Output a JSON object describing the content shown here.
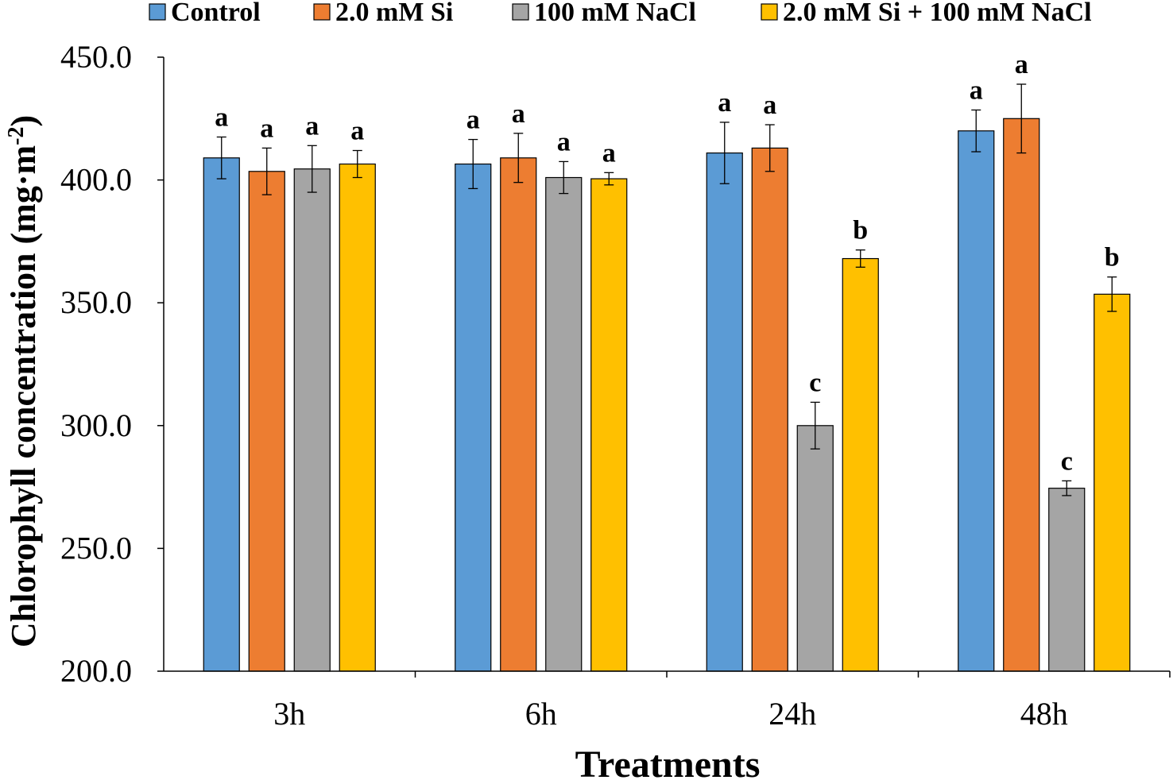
{
  "chart_data": {
    "type": "bar",
    "title": "",
    "xlabel": "Treatments",
    "ylabel_main": "Chlorophyll concentration (mg·m",
    "ylabel_sup": "-2",
    "ylabel_close": ")",
    "ylim": [
      200,
      450
    ],
    "yticks": [
      "200.0",
      "250.0",
      "300.0",
      "350.0",
      "400.0",
      "450.0"
    ],
    "ytick_values": [
      200,
      250,
      300,
      350,
      400,
      450
    ],
    "categories": [
      "3h",
      "6h",
      "24h",
      "48h"
    ],
    "legend_position": "top",
    "series": [
      {
        "name": "Control",
        "color": "#5B9BD5",
        "values": [
          409,
          406.5,
          411,
          420
        ],
        "errors": [
          8.5,
          10,
          12.5,
          8.5
        ],
        "letters": [
          "a",
          "a",
          "a",
          "a"
        ]
      },
      {
        "name": "2.0 mM Si",
        "color": "#ED7D31",
        "values": [
          403.5,
          409,
          413,
          425
        ],
        "errors": [
          9.5,
          10,
          9.5,
          14
        ],
        "letters": [
          "a",
          "a",
          "a",
          "a"
        ]
      },
      {
        "name": "100 mM NaCl",
        "color": "#A5A5A5",
        "values": [
          404.5,
          401,
          300,
          274.5
        ],
        "errors": [
          9.5,
          6.5,
          9.5,
          3
        ],
        "letters": [
          "a",
          "a",
          "c",
          "c"
        ]
      },
      {
        "name": "2.0 mM Si + 100 mM NaCl",
        "color": "#FFC000",
        "values": [
          406.5,
          400.5,
          368,
          353.5
        ],
        "errors": [
          5.5,
          2.5,
          3.5,
          7
        ],
        "letters": [
          "a",
          "a",
          "b",
          "b"
        ]
      }
    ]
  }
}
